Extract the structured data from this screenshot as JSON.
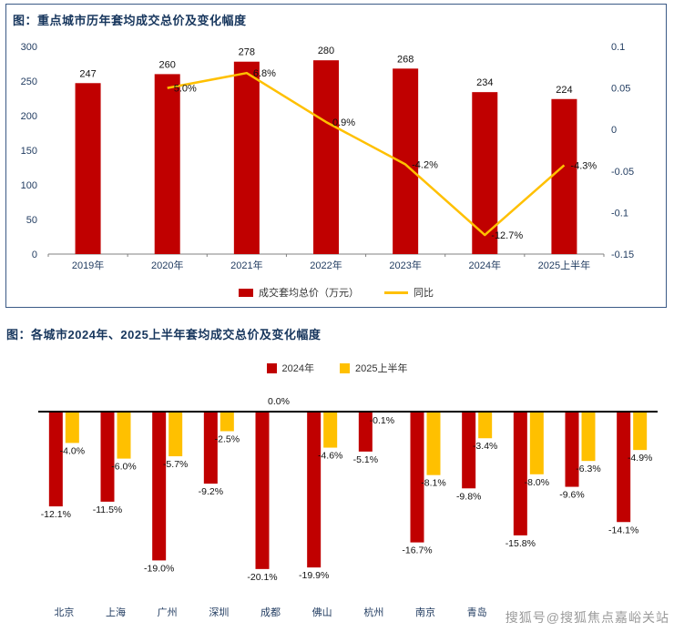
{
  "watermark": "搜狐号@搜狐焦点嘉峪关站",
  "colors": {
    "bar_red": "#C00000",
    "line_yellow": "#FFC000",
    "title_navy": "#17365D",
    "axis_navy": "#1F3A5F"
  },
  "chart_data": [
    {
      "type": "bar+line",
      "title": "图：重点城市历年套均成交总价及变化幅度",
      "categories": [
        "2019年",
        "2020年",
        "2021年",
        "2022年",
        "2023年",
        "2024年",
        "2025上半年"
      ],
      "bar_series": {
        "name": "成交套均总价（万元）",
        "color": "#C00000",
        "values": [
          247,
          260,
          278,
          280,
          268,
          234,
          224
        ]
      },
      "line_series": {
        "name": "同比",
        "color": "#FFC000",
        "values": [
          null,
          5.0,
          6.8,
          0.9,
          -4.2,
          -12.7,
          -4.3
        ],
        "labels": [
          "",
          "5.0%",
          "6.8%",
          "0.9%",
          "-4.2%",
          "-12.7%",
          "-4.3%"
        ]
      },
      "left_axis": {
        "min": 0,
        "max": 300,
        "ticks": [
          "0",
          "50",
          "100",
          "150",
          "200",
          "250",
          "300"
        ]
      },
      "right_axis": {
        "min": -0.15,
        "max": 0.1,
        "ticks": [
          "0.1",
          "0.05",
          "0",
          "-0.05",
          "-0.1",
          "-0.15"
        ]
      },
      "grid": false,
      "legend_position": "bottom"
    },
    {
      "type": "bar",
      "title": "图：各城市2024年、2025上半年套均成交总价及变化幅度",
      "categories": [
        "北京",
        "上海",
        "广州",
        "深圳",
        "成都",
        "佛山",
        "杭州",
        "南京",
        "青岛",
        "",
        "",
        ""
      ],
      "series": [
        {
          "name": "2024年",
          "color": "#C00000",
          "values": [
            -12.1,
            -11.5,
            -19.0,
            -9.2,
            -20.1,
            -19.9,
            -5.1,
            -16.7,
            -9.8,
            -15.8,
            -9.6,
            -14.1
          ]
        },
        {
          "name": "2025上半年",
          "color": "#FFC000",
          "values": [
            -4.0,
            -6.0,
            -5.7,
            -2.5,
            0.0,
            -4.6,
            -0.1,
            -8.1,
            -3.4,
            -8.0,
            -6.3,
            -4.9
          ]
        }
      ],
      "value_suffix": "%",
      "grid": false,
      "legend_position": "top"
    }
  ]
}
